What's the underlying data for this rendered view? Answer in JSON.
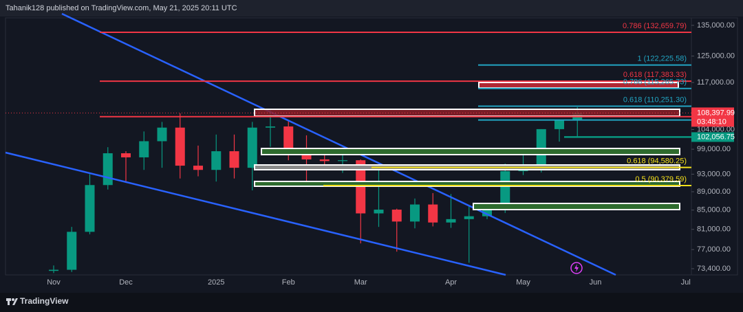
{
  "header": {
    "text": "Tahanik128 published on TradingView.com, May 21, 2025 20:11 UTC"
  },
  "chart_data": {
    "type": "candlestick",
    "categories": [
      "Nov",
      null,
      null,
      null,
      "Dec",
      null,
      null,
      null,
      null,
      "2025",
      null,
      null,
      null,
      "Feb",
      null,
      null,
      null,
      "Mar",
      null,
      null,
      null,
      null,
      "Apr",
      null,
      null,
      null,
      "May",
      null,
      null,
      null,
      "Jun",
      null,
      null,
      null,
      null,
      "Jul"
    ],
    "open": [
      73000,
      73200,
      80500,
      90500,
      98000,
      97000,
      101000,
      104500,
      95000,
      94000,
      98500,
      94500,
      104500,
      104800,
      97700,
      96500,
      96100,
      96300,
      84300,
      85100,
      82600,
      86200,
      82400,
      83100,
      83700,
      85100,
      93700,
      94300,
      104100,
      106400,
      null,
      null,
      null,
      null,
      null,
      null
    ],
    "high": [
      74000,
      81500,
      93000,
      99500,
      98500,
      103500,
      106000,
      108300,
      99900,
      102700,
      102700,
      106000,
      109300,
      106400,
      102500,
      98800,
      99400,
      96500,
      95000,
      85300,
      87500,
      88700,
      88500,
      86100,
      86400,
      95500,
      97900,
      104100,
      106600,
      110000,
      null,
      null,
      null,
      null,
      null,
      null
    ],
    "low": [
      72600,
      72800,
      80000,
      89500,
      91000,
      94000,
      94500,
      92000,
      92500,
      91300,
      92000,
      89300,
      99600,
      96300,
      91200,
      94100,
      93300,
      78200,
      81500,
      76600,
      81200,
      81600,
      81300,
      74500,
      83100,
      84400,
      92800,
      93400,
      100900,
      102100,
      null,
      null,
      null,
      null,
      null,
      null
    ],
    "close": [
      73200,
      80500,
      90500,
      98000,
      97000,
      101000,
      104500,
      95000,
      94000,
      98500,
      94500,
      104500,
      104800,
      97700,
      96500,
      96100,
      96300,
      84300,
      85100,
      82600,
      86200,
      82400,
      83100,
      83700,
      85100,
      93700,
      94300,
      104100,
      106400,
      108397.99,
      null,
      null,
      null,
      null,
      null,
      null
    ],
    "up_color": "#089981",
    "down_color": "#f23645",
    "ylim": [
      72270,
      140900
    ],
    "log_scale": true,
    "grid": false,
    "yticks": [
      {
        "value": 135000,
        "label": "135,000.00"
      },
      {
        "value": 125000,
        "label": "125,000.00"
      },
      {
        "value": 117000,
        "label": "117,000.00"
      },
      {
        "value": 104000,
        "label": "104,000.00"
      },
      {
        "value": 99000,
        "label": "99,000.00"
      },
      {
        "value": 93000,
        "label": "93,000.00"
      },
      {
        "value": 89000,
        "label": "89,000.00"
      },
      {
        "value": 85000,
        "label": "85,000.00"
      },
      {
        "value": 81000,
        "label": "81,000.00"
      },
      {
        "value": 77000,
        "label": "77,000.00"
      },
      {
        "value": 73400,
        "label": "73,400.00"
      }
    ],
    "levels": [
      {
        "label": "0.786 (132,659.79)",
        "value": 132659.79,
        "color": "#f23645"
      },
      {
        "label": "1 (122,225.58)",
        "value": 122225.58,
        "color": "#22a6c4"
      },
      {
        "label": "0.618 (117,383.33)",
        "value": 117383.33,
        "color": "#f23645"
      },
      {
        "label": "0.786 (115,265.73)",
        "value": 115265.73,
        "color": "#22a6c4"
      },
      {
        "label": "0.618 (110,251.30)",
        "value": 110251.3,
        "color": "#22a6c4"
      },
      {
        "value": 107400,
        "color": "#f23645"
      },
      {
        "value": 106500,
        "color": "#22a6c4"
      },
      {
        "label": "0.618 (94,580.25)",
        "value": 94580.25,
        "color": "#f5e11b"
      },
      {
        "label": "0.5 (90,379.59)",
        "value": 90379.59,
        "color": "#f5e11b"
      }
    ],
    "price_badges": [
      {
        "text": "108,397.99",
        "sub": "03:48:10",
        "value": 108397.99,
        "color": "#f23645"
      },
      {
        "text": "102,056.75",
        "value": 102056.75,
        "color": "#089981"
      }
    ]
  },
  "footer": {
    "brand": "TradingView"
  }
}
